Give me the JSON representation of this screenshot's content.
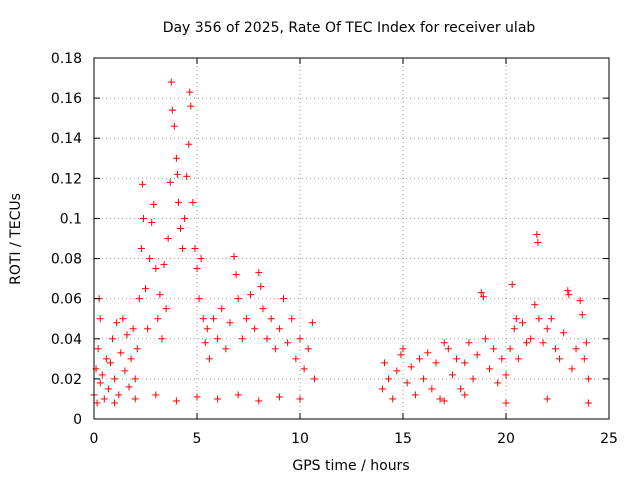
{
  "chart_data": {
    "type": "scatter",
    "title": "Day 356 of 2025, Rate Of TEC Index for receiver ulab",
    "xlabel": "GPS time / hours",
    "ylabel": "ROTI / TECUs",
    "xlim": [
      0,
      25
    ],
    "ylim": [
      0,
      0.18
    ],
    "x_ticks": [
      0,
      5,
      10,
      15,
      20,
      25
    ],
    "y_ticks": [
      0,
      0.02,
      0.04,
      0.06,
      0.08,
      0.1,
      0.12,
      0.14,
      0.16,
      0.18
    ],
    "x_tick_labels": [
      "0",
      "5",
      "10",
      "15",
      "20",
      "25"
    ],
    "y_tick_labels": [
      "0",
      "0.02",
      "0.04",
      "0.06",
      "0.08",
      "0.1",
      "0.12",
      "0.14",
      "0.16",
      "0.18"
    ],
    "grid": true,
    "marker": "+",
    "marker_color": "#ff0000",
    "series": [
      {
        "points": [
          [
            0.0,
            0.012
          ],
          [
            0.1,
            0.025
          ],
          [
            0.15,
            0.008
          ],
          [
            0.2,
            0.035
          ],
          [
            0.25,
            0.06
          ],
          [
            0.3,
            0.05
          ],
          [
            0.3,
            0.018
          ],
          [
            0.4,
            0.022
          ],
          [
            0.5,
            0.01
          ],
          [
            0.6,
            0.03
          ],
          [
            0.7,
            0.015
          ],
          [
            0.8,
            0.028
          ],
          [
            0.9,
            0.04
          ],
          [
            1.0,
            0.02
          ],
          [
            1.1,
            0.048
          ],
          [
            1.2,
            0.012
          ],
          [
            1.3,
            0.033
          ],
          [
            1.4,
            0.05
          ],
          [
            1.5,
            0.024
          ],
          [
            1.6,
            0.042
          ],
          [
            1.7,
            0.016
          ],
          [
            1.8,
            0.03
          ],
          [
            1.9,
            0.045
          ],
          [
            2.0,
            0.02
          ],
          [
            2.1,
            0.035
          ],
          [
            2.2,
            0.06
          ],
          [
            2.3,
            0.085
          ],
          [
            2.35,
            0.117
          ],
          [
            2.4,
            0.1
          ],
          [
            2.5,
            0.065
          ],
          [
            2.6,
            0.045
          ],
          [
            2.7,
            0.08
          ],
          [
            2.8,
            0.098
          ],
          [
            2.9,
            0.107
          ],
          [
            3.0,
            0.075
          ],
          [
            3.1,
            0.05
          ],
          [
            3.2,
            0.062
          ],
          [
            3.3,
            0.04
          ],
          [
            3.4,
            0.077
          ],
          [
            3.5,
            0.055
          ],
          [
            3.6,
            0.09
          ],
          [
            3.7,
            0.118
          ],
          [
            3.75,
            0.168
          ],
          [
            3.8,
            0.154
          ],
          [
            3.9,
            0.146
          ],
          [
            4.0,
            0.13
          ],
          [
            4.05,
            0.122
          ],
          [
            4.1,
            0.108
          ],
          [
            4.2,
            0.095
          ],
          [
            4.3,
            0.085
          ],
          [
            4.4,
            0.1
          ],
          [
            4.5,
            0.121
          ],
          [
            4.6,
            0.137
          ],
          [
            4.65,
            0.163
          ],
          [
            4.7,
            0.156
          ],
          [
            4.8,
            0.108
          ],
          [
            4.9,
            0.085
          ],
          [
            5.0,
            0.075
          ],
          [
            5.1,
            0.06
          ],
          [
            5.2,
            0.08
          ],
          [
            5.3,
            0.05
          ],
          [
            5.4,
            0.038
          ],
          [
            5.5,
            0.045
          ],
          [
            5.6,
            0.03
          ],
          [
            5.8,
            0.05
          ],
          [
            6.0,
            0.04
          ],
          [
            6.2,
            0.055
          ],
          [
            6.4,
            0.035
          ],
          [
            6.6,
            0.048
          ],
          [
            6.8,
            0.081
          ],
          [
            6.9,
            0.072
          ],
          [
            7.0,
            0.06
          ],
          [
            7.2,
            0.04
          ],
          [
            7.4,
            0.05
          ],
          [
            7.6,
            0.062
          ],
          [
            7.8,
            0.045
          ],
          [
            8.0,
            0.073
          ],
          [
            8.1,
            0.066
          ],
          [
            8.2,
            0.055
          ],
          [
            8.4,
            0.04
          ],
          [
            8.6,
            0.05
          ],
          [
            8.8,
            0.035
          ],
          [
            9.0,
            0.045
          ],
          [
            9.2,
            0.06
          ],
          [
            9.4,
            0.038
          ],
          [
            9.6,
            0.05
          ],
          [
            9.8,
            0.03
          ],
          [
            10.0,
            0.04
          ],
          [
            10.2,
            0.025
          ],
          [
            10.4,
            0.035
          ],
          [
            10.6,
            0.048
          ],
          [
            10.7,
            0.02
          ],
          [
            1.0,
            0.008
          ],
          [
            2.0,
            0.01
          ],
          [
            3.0,
            0.012
          ],
          [
            4.0,
            0.009
          ],
          [
            5.0,
            0.011
          ],
          [
            6.0,
            0.01
          ],
          [
            7.0,
            0.012
          ],
          [
            8.0,
            0.009
          ],
          [
            9.0,
            0.011
          ],
          [
            10.0,
            0.01
          ],
          [
            14.0,
            0.015
          ],
          [
            14.1,
            0.028
          ],
          [
            14.3,
            0.02
          ],
          [
            14.5,
            0.01
          ],
          [
            14.7,
            0.024
          ],
          [
            14.9,
            0.032
          ],
          [
            15.0,
            0.035
          ],
          [
            15.2,
            0.018
          ],
          [
            15.4,
            0.026
          ],
          [
            15.6,
            0.012
          ],
          [
            15.8,
            0.03
          ],
          [
            16.0,
            0.02
          ],
          [
            16.2,
            0.033
          ],
          [
            16.4,
            0.015
          ],
          [
            16.6,
            0.028
          ],
          [
            16.8,
            0.01
          ],
          [
            17.0,
            0.038
          ],
          [
            17.2,
            0.035
          ],
          [
            17.4,
            0.022
          ],
          [
            17.6,
            0.03
          ],
          [
            17.8,
            0.015
          ],
          [
            18.0,
            0.028
          ],
          [
            18.2,
            0.038
          ],
          [
            18.4,
            0.02
          ],
          [
            18.6,
            0.032
          ],
          [
            18.8,
            0.063
          ],
          [
            18.9,
            0.061
          ],
          [
            19.0,
            0.04
          ],
          [
            19.2,
            0.025
          ],
          [
            19.4,
            0.035
          ],
          [
            19.6,
            0.018
          ],
          [
            19.8,
            0.03
          ],
          [
            20.0,
            0.022
          ],
          [
            20.2,
            0.035
          ],
          [
            20.3,
            0.067
          ],
          [
            20.4,
            0.045
          ],
          [
            20.5,
            0.05
          ],
          [
            20.6,
            0.03
          ],
          [
            20.8,
            0.048
          ],
          [
            21.0,
            0.038
          ],
          [
            21.2,
            0.04
          ],
          [
            21.4,
            0.057
          ],
          [
            21.5,
            0.092
          ],
          [
            21.55,
            0.088
          ],
          [
            21.6,
            0.05
          ],
          [
            21.8,
            0.038
          ],
          [
            22.0,
            0.045
          ],
          [
            22.2,
            0.05
          ],
          [
            22.4,
            0.035
          ],
          [
            22.6,
            0.03
          ],
          [
            22.8,
            0.043
          ],
          [
            23.0,
            0.064
          ],
          [
            23.05,
            0.062
          ],
          [
            23.2,
            0.025
          ],
          [
            23.4,
            0.035
          ],
          [
            23.6,
            0.059
          ],
          [
            23.7,
            0.052
          ],
          [
            23.8,
            0.03
          ],
          [
            23.9,
            0.038
          ],
          [
            24.0,
            0.02
          ],
          [
            22.0,
            0.01
          ],
          [
            20.0,
            0.008
          ],
          [
            18.0,
            0.012
          ],
          [
            17.0,
            0.009
          ],
          [
            24.0,
            0.008
          ]
        ]
      }
    ]
  }
}
